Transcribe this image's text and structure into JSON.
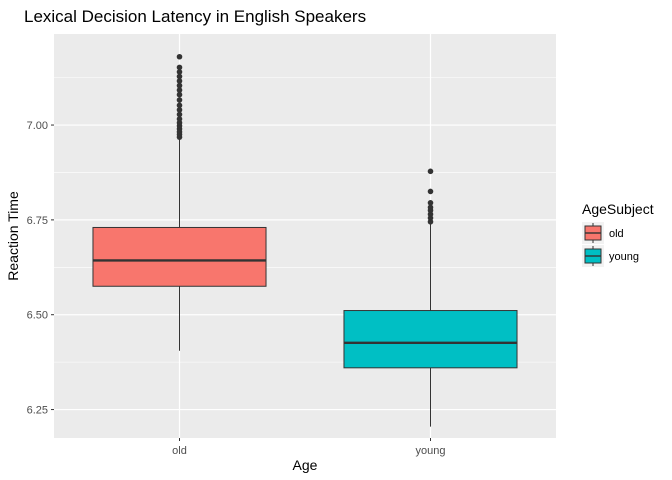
{
  "chart_data": {
    "type": "box",
    "title": "Lexical Decision Latency in English Speakers",
    "xlabel": "Age",
    "ylabel": "Reaction Time",
    "categories": [
      "old",
      "young"
    ],
    "ylim": [
      6.175,
      7.24
    ],
    "yticks": [
      6.25,
      6.5,
      6.75,
      7.0
    ],
    "ytick_labels": [
      "6.25",
      "6.50",
      "6.75",
      "7.00"
    ],
    "grid": true,
    "legend": {
      "title": "AgeSubject",
      "placement": "right",
      "entries": [
        {
          "label": "old",
          "color": "#F8766D"
        },
        {
          "label": "young",
          "color": "#00BFC4"
        }
      ]
    },
    "boxes": [
      {
        "category": "old",
        "color": "#F8766D",
        "whisker_low": 6.405,
        "q1": 6.575,
        "median": 6.643,
        "q3": 6.73,
        "whisker_high": 6.962,
        "outliers": [
          6.968,
          6.975,
          6.982,
          6.99,
          6.998,
          7.006,
          7.016,
          7.028,
          7.04,
          7.052,
          7.066,
          7.08,
          7.092,
          7.104,
          7.116,
          7.128,
          7.14,
          7.152,
          7.18
        ]
      },
      {
        "category": "young",
        "color": "#00BFC4",
        "whisker_low": 6.205,
        "q1": 6.36,
        "median": 6.426,
        "q3": 6.511,
        "whisker_high": 6.738,
        "outliers": [
          6.745,
          6.755,
          6.765,
          6.775,
          6.783,
          6.795,
          6.825,
          6.878
        ]
      }
    ]
  }
}
